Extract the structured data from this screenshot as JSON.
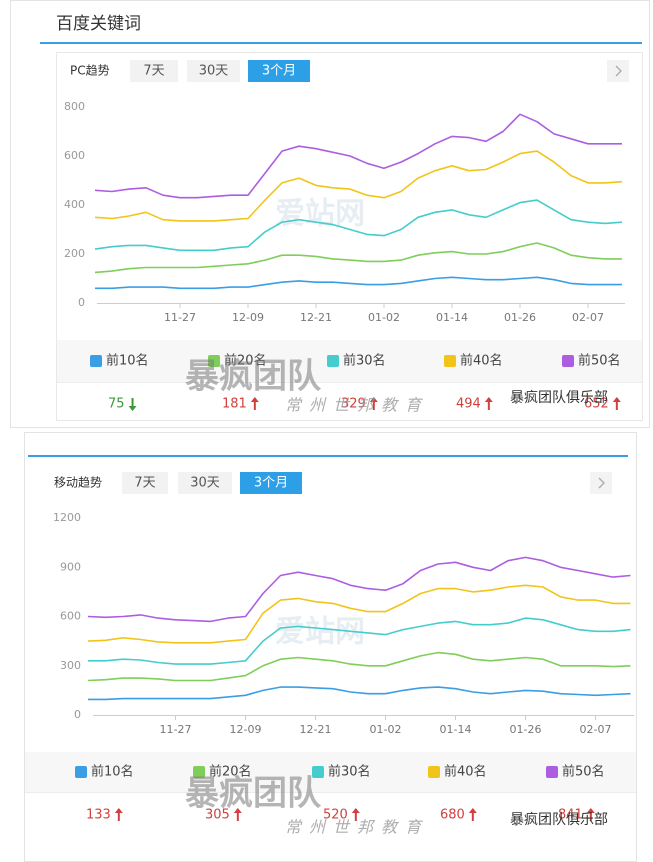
{
  "title": "百度关键词",
  "panels": [
    {
      "label": "PC趋势",
      "tabs": [
        {
          "label": "7天"
        },
        {
          "label": "30天"
        },
        {
          "label": "3个月",
          "active": true
        }
      ],
      "watermarks": [
        "暴疯团队",
        "常州世邦教育",
        "暴疯团队俱乐部"
      ]
    },
    {
      "label": "移动趋势",
      "tabs": [
        {
          "label": "7天"
        },
        {
          "label": "30天"
        },
        {
          "label": "3个月",
          "active": true
        }
      ],
      "watermarks": [
        "暴疯团队",
        "常州世邦教育",
        "暴疯团队俱乐部"
      ]
    }
  ],
  "chart_data": [
    {
      "type": "line",
      "watermark": "爱站网",
      "categories": [
        null,
        null,
        null,
        null,
        null,
        "11-27",
        null,
        null,
        null,
        "12-09",
        null,
        null,
        null,
        "12-21",
        null,
        null,
        null,
        "01-02",
        null,
        null,
        null,
        "01-14",
        null,
        null,
        null,
        "01-26",
        null,
        null,
        null,
        "02-07",
        null,
        null
      ],
      "ylim": [
        0,
        800
      ],
      "yticks": [
        0,
        200,
        400,
        600,
        800
      ],
      "series": [
        {
          "name": "前10名",
          "color": "#3a9ee4",
          "latest": 75,
          "trend": "down",
          "values": [
            60,
            60,
            65,
            65,
            65,
            60,
            60,
            60,
            65,
            65,
            75,
            85,
            90,
            85,
            85,
            80,
            75,
            75,
            80,
            90,
            100,
            105,
            100,
            95,
            95,
            100,
            105,
            95,
            80,
            75,
            75,
            75
          ]
        },
        {
          "name": "前20名",
          "color": "#7fce5a",
          "latest": 181,
          "trend": "up",
          "values": [
            125,
            130,
            140,
            145,
            145,
            145,
            145,
            150,
            155,
            160,
            175,
            195,
            195,
            190,
            180,
            175,
            170,
            170,
            175,
            195,
            205,
            210,
            200,
            200,
            210,
            230,
            245,
            225,
            195,
            185,
            180,
            180
          ]
        },
        {
          "name": "前30名",
          "color": "#45cccc",
          "latest": 329,
          "trend": "up",
          "values": [
            220,
            230,
            235,
            235,
            225,
            215,
            215,
            215,
            225,
            230,
            290,
            330,
            340,
            330,
            320,
            300,
            280,
            275,
            300,
            350,
            370,
            380,
            360,
            350,
            380,
            410,
            420,
            380,
            340,
            330,
            325,
            330
          ]
        },
        {
          "name": "前40名",
          "color": "#f2c41a",
          "latest": 494,
          "trend": "up",
          "values": [
            350,
            345,
            355,
            370,
            340,
            335,
            335,
            335,
            340,
            345,
            420,
            490,
            510,
            480,
            470,
            465,
            440,
            430,
            455,
            510,
            540,
            560,
            540,
            545,
            575,
            610,
            620,
            575,
            520,
            490,
            490,
            495
          ]
        },
        {
          "name": "前50名",
          "color": "#ac5ee0",
          "latest": 652,
          "trend": "up",
          "values": [
            460,
            455,
            465,
            470,
            440,
            430,
            430,
            435,
            440,
            440,
            530,
            620,
            640,
            630,
            615,
            600,
            570,
            550,
            575,
            610,
            650,
            680,
            675,
            660,
            700,
            770,
            740,
            690,
            670,
            650,
            650,
            650
          ]
        }
      ]
    },
    {
      "type": "line",
      "watermark": "爱站网",
      "categories": [
        null,
        null,
        null,
        null,
        null,
        "11-27",
        null,
        null,
        null,
        "12-09",
        null,
        null,
        null,
        "12-21",
        null,
        null,
        null,
        "01-02",
        null,
        null,
        null,
        "01-14",
        null,
        null,
        null,
        "01-26",
        null,
        null,
        null,
        "02-07",
        null,
        null
      ],
      "ylim": [
        0,
        1200
      ],
      "yticks": [
        0,
        300,
        600,
        900,
        1200
      ],
      "series": [
        {
          "name": "前10名",
          "color": "#3a9ee4",
          "latest": 133,
          "trend": "up",
          "values": [
            95,
            95,
            100,
            100,
            100,
            100,
            100,
            100,
            110,
            120,
            150,
            170,
            170,
            165,
            160,
            140,
            130,
            130,
            150,
            165,
            170,
            160,
            140,
            130,
            140,
            150,
            145,
            130,
            125,
            120,
            125,
            130
          ]
        },
        {
          "name": "前20名",
          "color": "#7fce5a",
          "latest": 305,
          "trend": "up",
          "values": [
            210,
            215,
            225,
            225,
            220,
            210,
            210,
            210,
            225,
            240,
            300,
            340,
            350,
            340,
            330,
            310,
            300,
            300,
            330,
            360,
            380,
            370,
            340,
            330,
            340,
            350,
            340,
            300,
            300,
            300,
            295,
            300
          ]
        },
        {
          "name": "前30名",
          "color": "#45cccc",
          "latest": 520,
          "trend": "up",
          "values": [
            330,
            330,
            340,
            335,
            320,
            310,
            310,
            310,
            320,
            330,
            450,
            530,
            540,
            530,
            520,
            510,
            500,
            490,
            520,
            540,
            560,
            570,
            550,
            550,
            560,
            590,
            580,
            550,
            520,
            510,
            510,
            520
          ]
        },
        {
          "name": "前40名",
          "color": "#f2c41a",
          "latest": 680,
          "trend": "up",
          "values": [
            450,
            455,
            470,
            460,
            445,
            440,
            440,
            440,
            450,
            460,
            620,
            700,
            710,
            690,
            680,
            650,
            630,
            630,
            680,
            740,
            770,
            770,
            750,
            760,
            780,
            790,
            780,
            720,
            700,
            700,
            680,
            680
          ]
        },
        {
          "name": "前50名",
          "color": "#ac5ee0",
          "latest": 841,
          "trend": "up",
          "values": [
            600,
            595,
            600,
            610,
            590,
            580,
            575,
            570,
            590,
            600,
            740,
            850,
            870,
            850,
            830,
            790,
            770,
            760,
            800,
            880,
            920,
            930,
            900,
            880,
            940,
            960,
            940,
            900,
            880,
            860,
            840,
            850
          ]
        }
      ]
    }
  ]
}
